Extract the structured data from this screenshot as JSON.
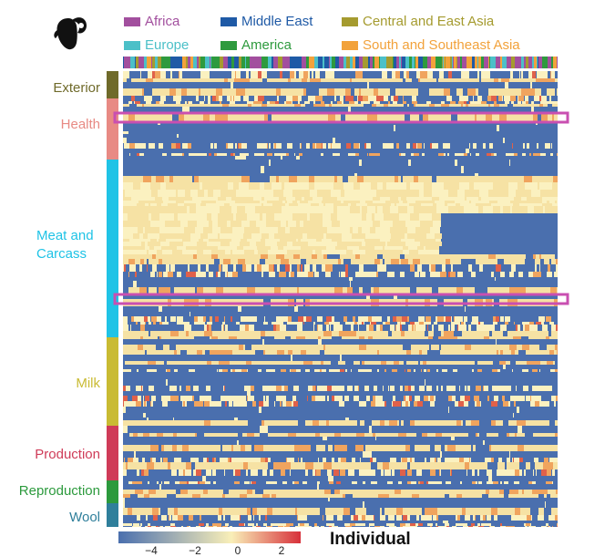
{
  "chart_data": {
    "type": "heatmap",
    "xlabel": "Individual",
    "colorbar": {
      "ticks": [
        -4,
        -2,
        0,
        2
      ],
      "tick_labels": [
        "−4",
        "−2",
        "0",
        "2"
      ],
      "min": -5,
      "max": 3,
      "colors": [
        "#4a6fae",
        "#f9efb8",
        "#d7303a"
      ]
    },
    "populations": [
      {
        "name": "Africa",
        "color": "#a24f9e"
      },
      {
        "name": "Middle East",
        "color": "#1f5aa6"
      },
      {
        "name": "Central and East Asia",
        "color": "#a59b2f"
      },
      {
        "name": "Europe",
        "color": "#4cc0c8"
      },
      {
        "name": "America",
        "color": "#2e9a3e"
      },
      {
        "name": "South and Southeast Asia",
        "color": "#f2a23b"
      }
    ],
    "trait_groups": [
      {
        "name": "Exterior",
        "color": "#6f6a2a"
      },
      {
        "name": "Health",
        "color": "#e88a84"
      },
      {
        "name": "Meat and Carcass",
        "color": "#1fc3e6"
      },
      {
        "name": "Milk",
        "color": "#c9bb33"
      },
      {
        "name": "Production",
        "color": "#cf3b58"
      },
      {
        "name": "Reproduction",
        "color": "#2c9a3d"
      },
      {
        "name": "Wool",
        "color": "#2f7f9b"
      }
    ],
    "highlighted_rows": [
      "Health",
      "Meat and Carcass"
    ],
    "highlight_color": "#c94fb1"
  },
  "legend": {
    "africa": "Africa",
    "middle_east": "Middle East",
    "central_east_asia": "Central and East Asia",
    "europe": "Europe",
    "america": "America",
    "south_se_asia": "South and Southeast Asia"
  },
  "labels": {
    "exterior": "Exterior",
    "health": "Health",
    "meat": "Meat and\nCarcass",
    "milk": "Milk",
    "production": "Production",
    "reproduction": "Reproduction",
    "wool": "Wool"
  },
  "icons": {
    "sheep": "sheep-head-icon"
  }
}
